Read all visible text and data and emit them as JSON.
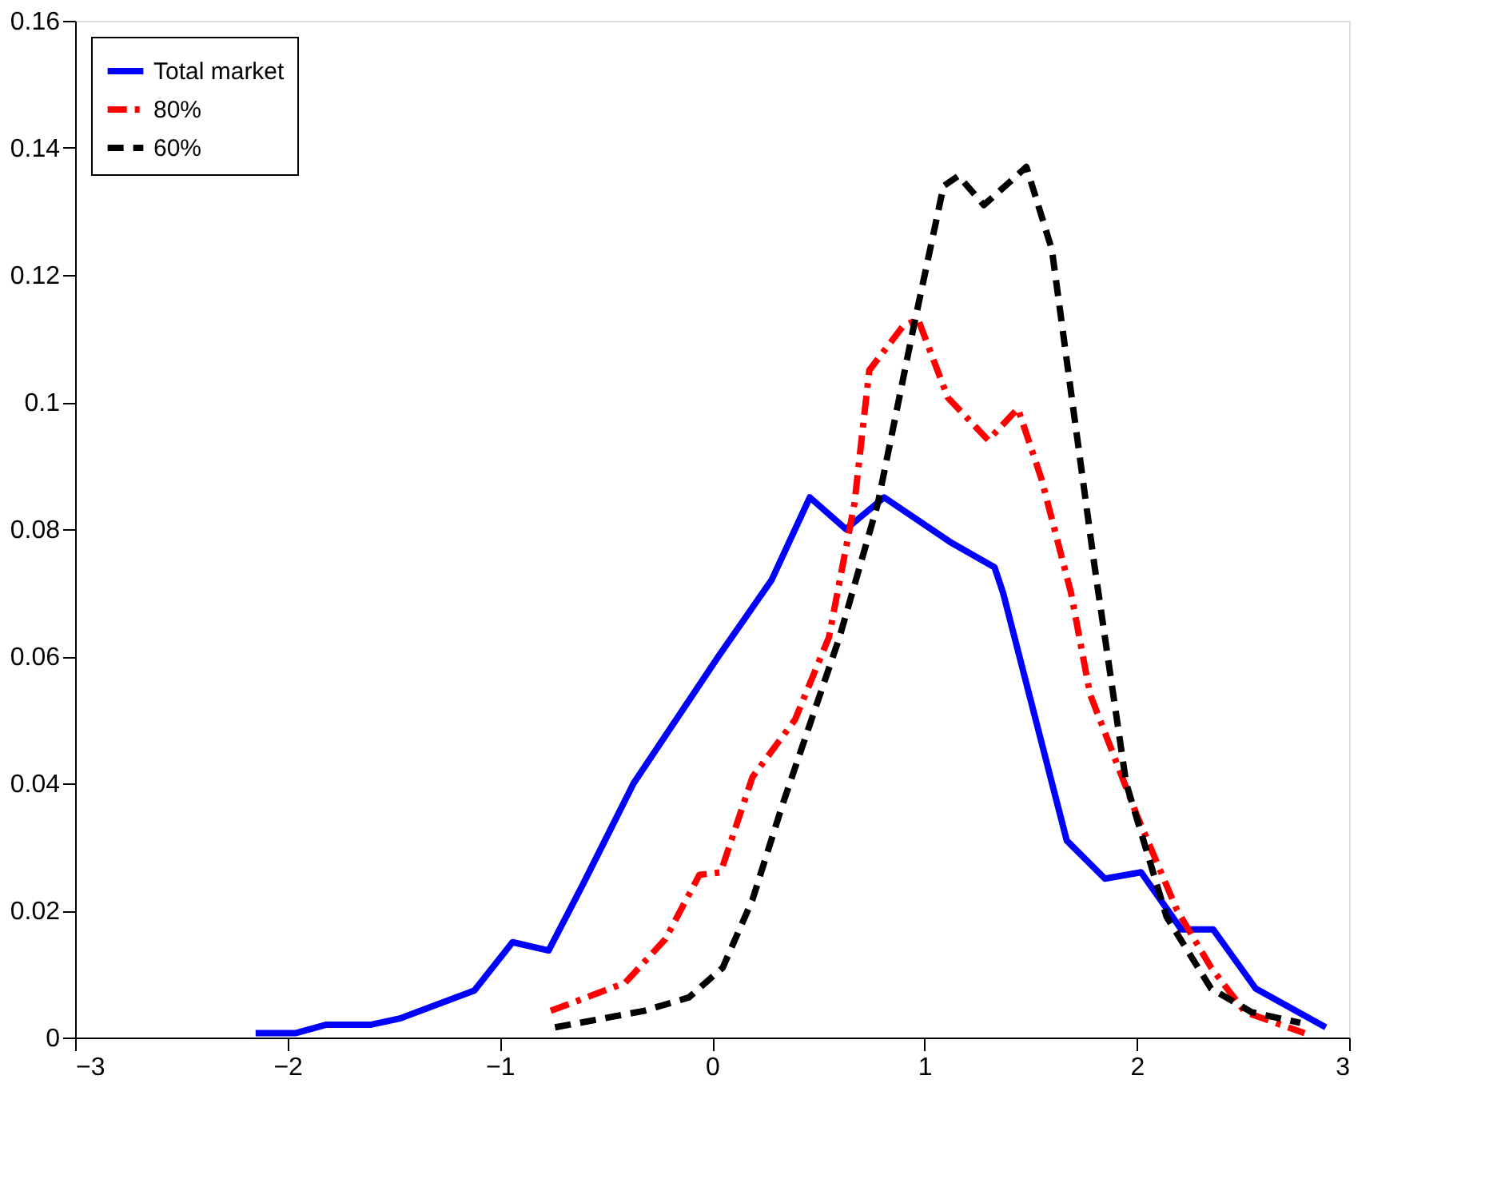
{
  "chart_data": {
    "type": "line",
    "xlim": [
      -3,
      3
    ],
    "xticks": [
      -3,
      -2,
      -1,
      0,
      1,
      2,
      3
    ],
    "ylim": [
      0,
      0.16
    ],
    "yticks": [
      0,
      0.02,
      0.04,
      0.06,
      0.08,
      0.1,
      0.12,
      0.14,
      0.16
    ],
    "grid": false,
    "legend": "top left",
    "marker": "none",
    "series": [
      {
        "name": "Total market",
        "color": "#0000ff",
        "line_style": "solid",
        "x": [
          -2.15,
          -1.96,
          -1.82,
          -1.61,
          -1.47,
          -1.12,
          -0.94,
          -0.77,
          -0.61,
          -0.37,
          0.03,
          0.28,
          0.46,
          0.63,
          0.81,
          1.12,
          1.33,
          1.37,
          1.67,
          1.85,
          2.02,
          2.21,
          2.36,
          2.56,
          2.89
        ],
        "values": [
          0.0007,
          0.0007,
          0.002,
          0.002,
          0.003,
          0.0074,
          0.015,
          0.0137,
          0.024,
          0.04,
          0.06,
          0.072,
          0.085,
          0.08,
          0.085,
          0.078,
          0.074,
          0.07,
          0.031,
          0.025,
          0.026,
          0.017,
          0.017,
          0.0077,
          0.0016
        ]
      },
      {
        "name": "80%",
        "color": "#ff0000",
        "line_style": "dashdot",
        "x": [
          -0.76,
          -0.41,
          -0.22,
          -0.06,
          0.04,
          0.19,
          0.39,
          0.55,
          0.67,
          0.74,
          0.9,
          0.97,
          1.11,
          1.3,
          1.44,
          1.55,
          1.69,
          1.78,
          2.0,
          2.19,
          2.35,
          2.51,
          2.79
        ],
        "values": [
          0.0042,
          0.0086,
          0.0155,
          0.0256,
          0.026,
          0.041,
          0.05,
          0.063,
          0.084,
          0.105,
          0.112,
          0.113,
          0.1007,
          0.094,
          0.099,
          0.088,
          0.07,
          0.054,
          0.035,
          0.02,
          0.011,
          0.004,
          0.0007
        ]
      },
      {
        "name": "60%",
        "color": "#000000",
        "line_style": "dashed",
        "x": [
          -0.74,
          -0.32,
          -0.11,
          0.05,
          0.19,
          0.33,
          0.6,
          0.78,
          0.95,
          1.09,
          1.16,
          1.28,
          1.48,
          1.6,
          1.69,
          1.8,
          1.95,
          2.14,
          2.35,
          2.54,
          2.77
        ],
        "values": [
          0.0016,
          0.0042,
          0.0063,
          0.011,
          0.0217,
          0.0365,
          0.063,
          0.084,
          0.112,
          0.134,
          0.1356,
          0.131,
          0.137,
          0.124,
          0.1016,
          0.0744,
          0.04,
          0.019,
          0.0077,
          0.004,
          0.0023
        ]
      }
    ]
  }
}
